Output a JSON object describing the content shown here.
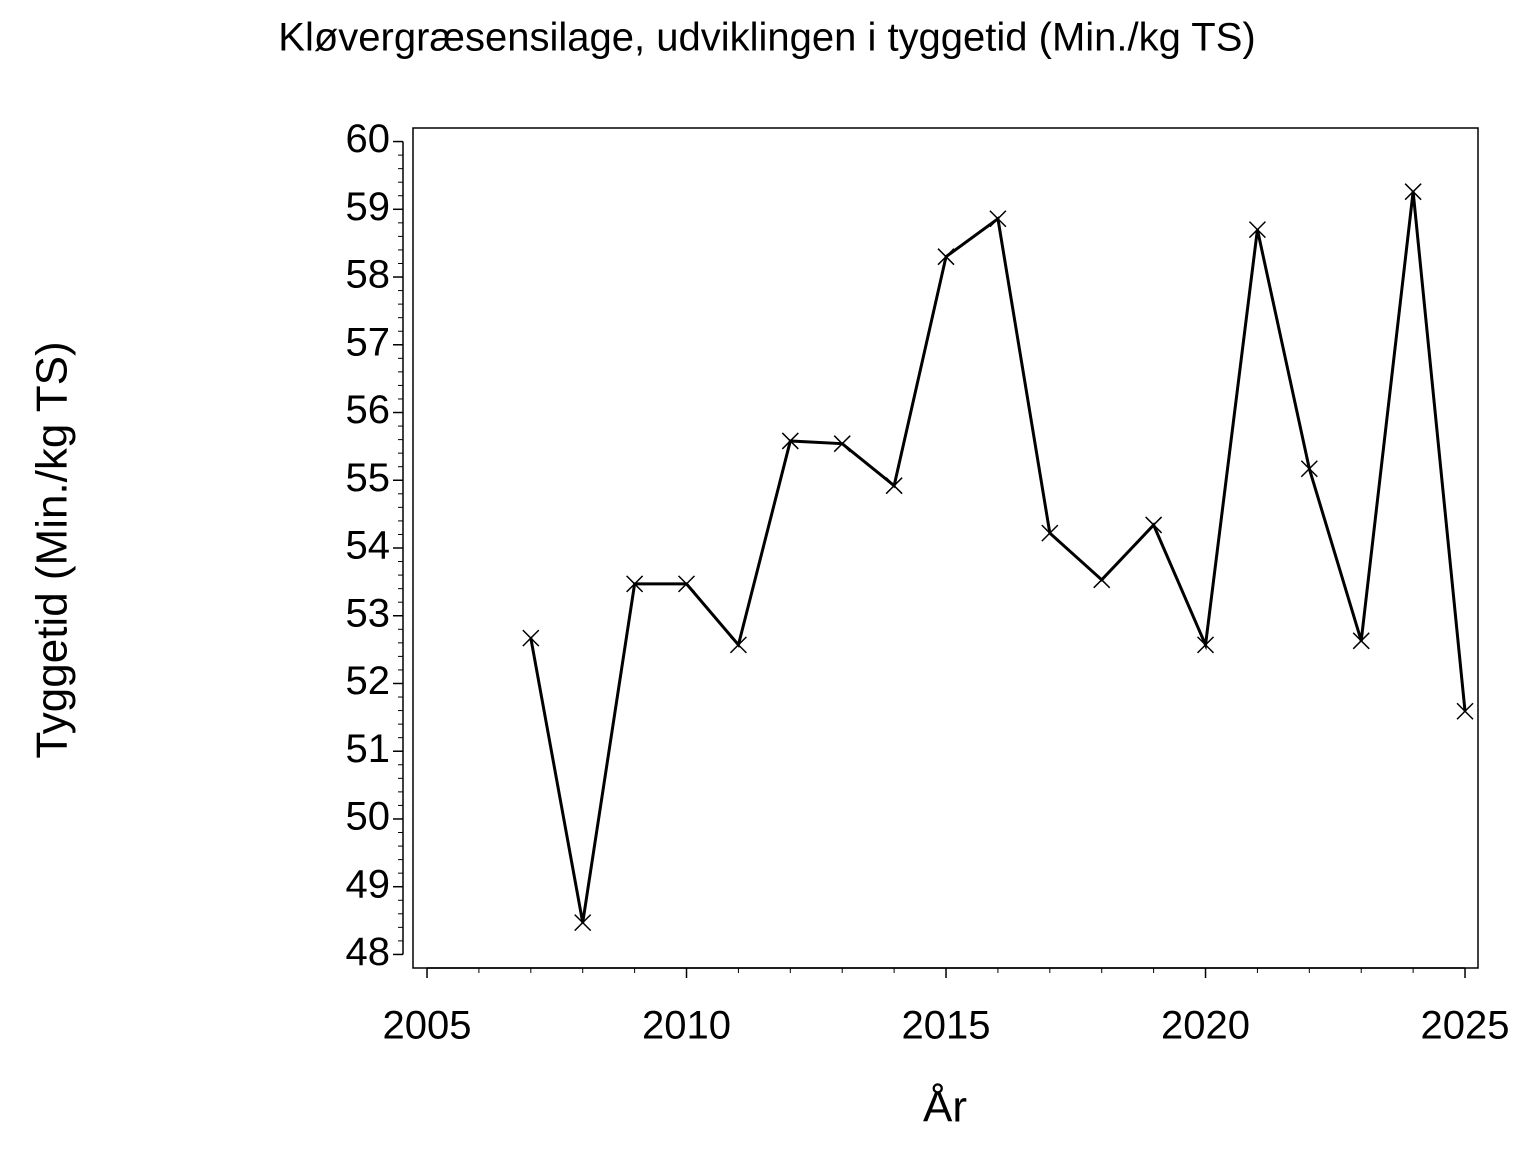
{
  "chart_data": {
    "type": "line",
    "title": "Kløvergræsensilage,  udviklingen  i  tyggetid  (Min./kg  TS)",
    "x_label": "År",
    "y_label": "Tyggetid  (Min./kg TS)",
    "x": [
      2007,
      2008,
      2009,
      2010,
      2011,
      2012,
      2013,
      2014,
      2015,
      2016,
      2017,
      2018,
      2019,
      2020,
      2021,
      2022,
      2023,
      2024,
      2025
    ],
    "series": [
      {
        "name": "Tyggetid",
        "color": "#000000",
        "values": [
          52.67,
          48.47,
          53.47,
          53.47,
          52.57,
          55.58,
          55.54,
          54.92,
          58.3,
          58.86,
          54.22,
          53.53,
          54.34,
          52.57,
          58.7,
          55.17,
          52.63,
          59.26,
          51.59
        ]
      }
    ],
    "xlim": [
      2004.73,
      2025.25
    ],
    "ylim": [
      47.8,
      60.2
    ],
    "xticks": [
      2005,
      2010,
      2015,
      2020,
      2025
    ],
    "yticks": [
      48,
      49,
      50,
      51,
      52,
      53,
      54,
      55,
      56,
      57,
      58,
      59,
      60
    ]
  }
}
